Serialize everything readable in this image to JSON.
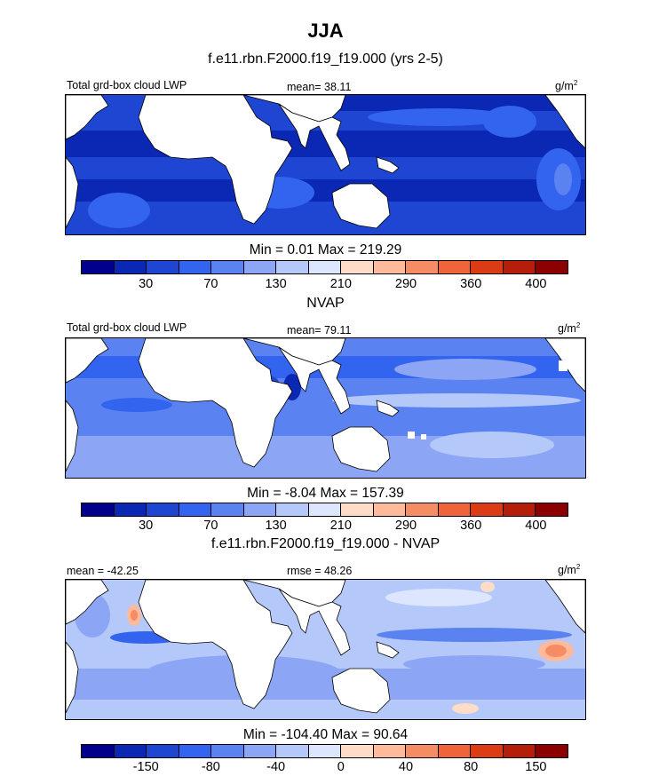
{
  "figure": {
    "title": "JJA",
    "subtitle": "f.e11.rbn.F2000.f19_f19.000 (yrs 2-5)"
  },
  "chart_data": [
    {
      "type": "heatmap",
      "title": "f.e11.rbn.F2000.f19_f19.000 (yrs 2-5)",
      "left_label": "Total grd-box cloud LWP",
      "center_label": "mean=  38.11",
      "units": "g/m",
      "units_sup": "2",
      "min_max": "Min =   0.01 Max = 219.29",
      "colorbar": {
        "labels": [
          "30",
          "70",
          "130",
          "210",
          "290",
          "360",
          "400"
        ],
        "label_bins": [
          1,
          3,
          5,
          7,
          9,
          11,
          13
        ],
        "colors": [
          "#00008c",
          "#0a28b4",
          "#1e46d2",
          "#3264f0",
          "#5a82f0",
          "#8ca5f5",
          "#b4c8fa",
          "#dce6ff",
          "#ffdcc8",
          "#ffb99b",
          "#f58c64",
          "#f0643c",
          "#dc3c14",
          "#b41e0a",
          "#8c0000"
        ]
      }
    },
    {
      "type": "heatmap",
      "title": "NVAP",
      "left_label": "Total grd-box cloud LWP",
      "center_label": "mean=  79.11",
      "units": "g/m",
      "units_sup": "2",
      "min_max": "Min =  -8.04 Max = 157.39",
      "colorbar": {
        "labels": [
          "30",
          "70",
          "130",
          "210",
          "290",
          "360",
          "400"
        ],
        "label_bins": [
          1,
          3,
          5,
          7,
          9,
          11,
          13
        ],
        "colors": [
          "#00008c",
          "#0a28b4",
          "#1e46d2",
          "#3264f0",
          "#5a82f0",
          "#8ca5f5",
          "#b4c8fa",
          "#dce6ff",
          "#ffdcc8",
          "#ffb99b",
          "#f58c64",
          "#f0643c",
          "#dc3c14",
          "#b41e0a",
          "#8c0000"
        ]
      }
    },
    {
      "type": "heatmap",
      "title": "f.e11.rbn.F2000.f19_f19.000 - NVAP",
      "left_label": "mean = -42.25",
      "center_label": "rmse =  48.26",
      "units": "g/m",
      "units_sup": "2",
      "min_max": "Min = -104.40 Max =  90.64",
      "colorbar": {
        "labels": [
          "-150",
          "-80",
          "-40",
          "0",
          "40",
          "80",
          "150"
        ],
        "label_bins": [
          1,
          3,
          5,
          7,
          9,
          11,
          13
        ],
        "colors": [
          "#00008c",
          "#0a28b4",
          "#1e46d2",
          "#3264f0",
          "#5a82f0",
          "#8ca5f5",
          "#b4c8fa",
          "#dce6ff",
          "#ffdcc8",
          "#ffb99b",
          "#f58c64",
          "#f0643c",
          "#dc3c14",
          "#b41e0a",
          "#8c0000"
        ]
      }
    }
  ]
}
